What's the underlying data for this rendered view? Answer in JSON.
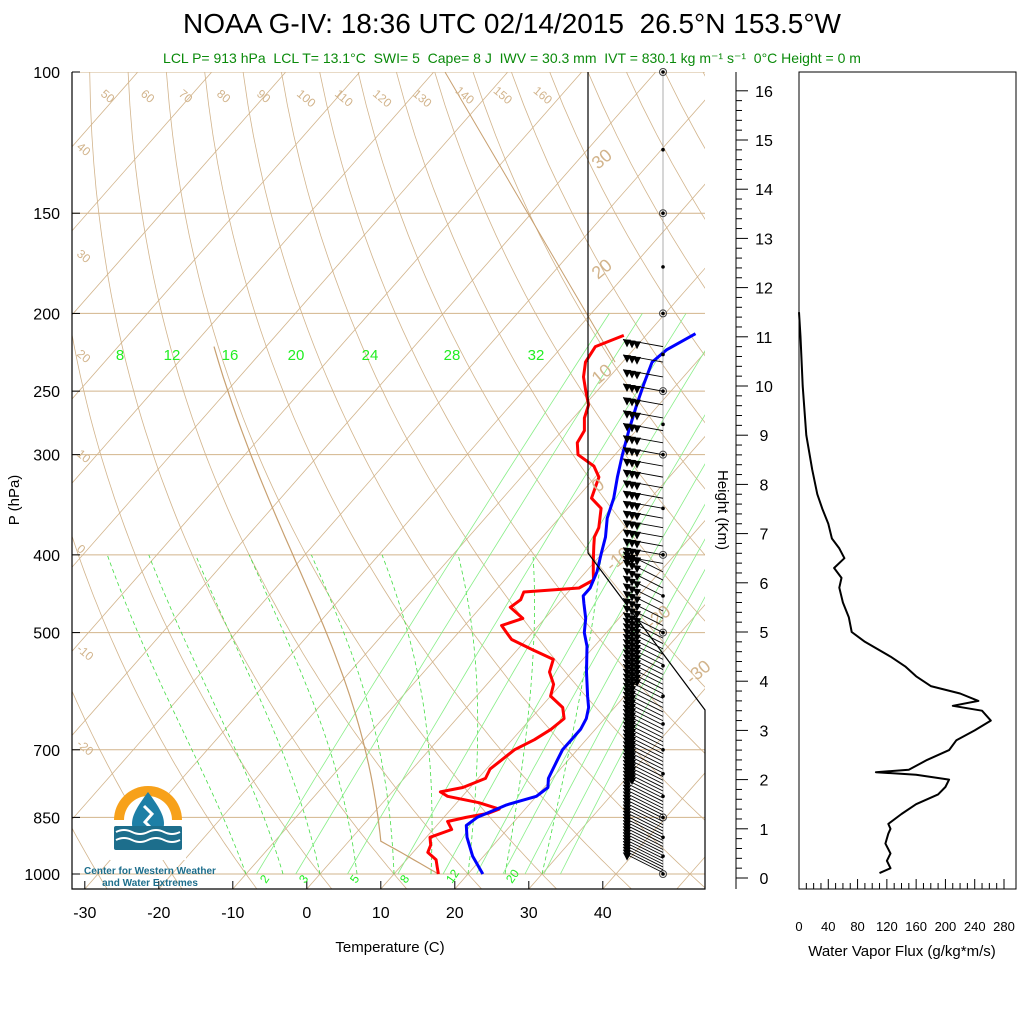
{
  "header": {
    "title": "NOAA G-IV: 18:36 UTC 02/14/2015  26.5°N 153.5°W",
    "subtitle": "LCL P= 913 hPa  LCL T= 13.1°C  SWI= 5  Cape= 8 J  IWV = 30.3 mm  IVT = 830.1 kg m⁻¹ s⁻¹  0°C Height = 0 m"
  },
  "logo": {
    "line1": "Center for Western Weather",
    "line2": "and Water Extremes",
    "colors": {
      "sun": "#f7a11a",
      "drop": "#1d7fa6",
      "wave": "#1d6e8c"
    }
  },
  "colors": {
    "temperature": "#ff0000",
    "dewpoint": "#0000ff",
    "background_lines": "#d2b48c",
    "mixing_ratio": "#00cc00"
  },
  "chart_data": [
    {
      "type": "line",
      "subtype": "skew-T log-P",
      "xlabel": "Temperature (C)",
      "ylabel": "P (hPa)",
      "x_ticks": [
        "-30",
        "-20",
        "-10",
        "0",
        "10",
        "20",
        "30",
        "40"
      ],
      "y_ticks": [
        "100",
        "150",
        "200",
        "250",
        "300",
        "400",
        "500",
        "700",
        "850",
        "1000"
      ],
      "y_scale": "log",
      "ylim": [
        1000,
        100
      ],
      "xlim": [
        -33,
        52
      ],
      "mixing_ratio_labels_upper": [
        "8",
        "12",
        "16",
        "20",
        "24",
        "28",
        "32"
      ],
      "mixing_ratio_labels_lower": [
        "2",
        "3",
        "5",
        "8",
        "12",
        "20"
      ],
      "theta_labels_top": [
        "50",
        "60",
        "70",
        "80",
        "90",
        "100",
        "110",
        "120",
        "130",
        "140",
        "150",
        "160"
      ],
      "theta_labels_left": [
        "40",
        "30",
        "20",
        "10",
        "0",
        "-10",
        "-20"
      ],
      "isotherm_labels_right": [
        "30",
        "20",
        "10",
        "0",
        "-10",
        "-20",
        "-30"
      ],
      "series": [
        {
          "name": "Temperature",
          "color": "#ff0000",
          "points": [
            [
              1000,
              16.0
            ],
            [
              980,
              15.0
            ],
            [
              960,
              14.0
            ],
            [
              940,
              12.0
            ],
            [
              920,
              11.5
            ],
            [
              900,
              10.5
            ],
            [
              880,
              12.5
            ],
            [
              860,
              11.0
            ],
            [
              850,
              13.0
            ],
            [
              840,
              15.5
            ],
            [
              830,
              16.5
            ],
            [
              815,
              13.0
            ],
            [
              800,
              8.0
            ],
            [
              790,
              6.5
            ],
            [
              780,
              9.0
            ],
            [
              760,
              11.0
            ],
            [
              740,
              10.5
            ],
            [
              720,
              11.0
            ],
            [
              700,
              11.5
            ],
            [
              680,
              13.0
            ],
            [
              660,
              14.0
            ],
            [
              640,
              14.5
            ],
            [
              620,
              13.0
            ],
            [
              600,
              10.0
            ],
            [
              580,
              9.0
            ],
            [
              560,
              7.0
            ],
            [
              540,
              6.0
            ],
            [
              525,
              2.0
            ],
            [
              510,
              -2.0
            ],
            [
              500,
              -3.5
            ],
            [
              490,
              -5.0
            ],
            [
              480,
              -3.0
            ],
            [
              465,
              -6.0
            ],
            [
              455,
              -5.5
            ],
            [
              445,
              -6.0
            ],
            [
              440,
              1.0
            ],
            [
              430,
              2.0
            ],
            [
              420,
              1.0
            ],
            [
              410,
              0.0
            ],
            [
              400,
              -1.0
            ],
            [
              390,
              -2.0
            ],
            [
              380,
              -3.0
            ],
            [
              370,
              -3.5
            ],
            [
              350,
              -5.5
            ],
            [
              340,
              -8.0
            ],
            [
              320,
              -9.5
            ],
            [
              310,
              -11.5
            ],
            [
              300,
              -15.0
            ],
            [
              290,
              -16.5
            ],
            [
              280,
              -17.0
            ],
            [
              270,
              -18.5
            ],
            [
              260,
              -19.5
            ],
            [
              250,
              -21.5
            ],
            [
              240,
              -23.5
            ],
            [
              230,
              -25.0
            ],
            [
              220,
              -25.5
            ],
            [
              213,
              -23.0
            ]
          ]
        },
        {
          "name": "Dewpoint",
          "color": "#0000ff",
          "points": [
            [
              1000,
              22.0
            ],
            [
              950,
              18.5
            ],
            [
              900,
              15.5
            ],
            [
              870,
              14.0
            ],
            [
              850,
              14.5
            ],
            [
              820,
              17.0
            ],
            [
              800,
              20.0
            ],
            [
              780,
              20.5
            ],
            [
              760,
              19.5
            ],
            [
              740,
              19.0
            ],
            [
              720,
              18.5
            ],
            [
              700,
              18.0
            ],
            [
              680,
              18.0
            ],
            [
              660,
              18.0
            ],
            [
              640,
              17.5
            ],
            [
              620,
              16.5
            ],
            [
              600,
              15.0
            ],
            [
              560,
              12.0
            ],
            [
              520,
              9.0
            ],
            [
              500,
              7.0
            ],
            [
              480,
              5.5
            ],
            [
              460,
              3.5
            ],
            [
              450,
              2.5
            ],
            [
              440,
              2.5
            ],
            [
              420,
              1.5
            ],
            [
              400,
              0.0
            ],
            [
              380,
              -1.5
            ],
            [
              360,
              -3.5
            ],
            [
              340,
              -5.0
            ],
            [
              320,
              -7.0
            ],
            [
              300,
              -9.0
            ],
            [
              280,
              -11.0
            ],
            [
              260,
              -13.0
            ],
            [
              245,
              -14.5
            ],
            [
              230,
              -16.0
            ],
            [
              222,
              -15.5
            ],
            [
              212,
              -13.5
            ]
          ]
        },
        {
          "name": "Water Vapor Flux",
          "xlabel": "Water Vapor Flux (g/kg*m/s)",
          "ylabel": "Height (Km)",
          "x_ticks": [
            "0",
            "40",
            "80",
            "120",
            "160",
            "200",
            "240",
            "280"
          ],
          "y_ticks": [
            "0",
            "1",
            "2",
            "3",
            "4",
            "5",
            "6",
            "7",
            "8",
            "9",
            "10",
            "11",
            "12",
            "13",
            "14",
            "15",
            "16"
          ],
          "xlim": [
            0,
            280
          ],
          "ylim": [
            0,
            16.5
          ],
          "points": [
            [
              0.1,
              110
            ],
            [
              0.2,
              125
            ],
            [
              0.35,
              120
            ],
            [
              0.5,
              125
            ],
            [
              0.7,
              118
            ],
            [
              0.9,
              122
            ],
            [
              1.0,
              125
            ],
            [
              1.1,
              122
            ],
            [
              1.3,
              140
            ],
            [
              1.5,
              160
            ],
            [
              1.7,
              190
            ],
            [
              1.85,
              200
            ],
            [
              2.0,
              205
            ],
            [
              2.1,
              160
            ],
            [
              2.15,
              105
            ],
            [
              2.2,
              150
            ],
            [
              2.4,
              175
            ],
            [
              2.6,
              205
            ],
            [
              2.8,
              215
            ],
            [
              3.0,
              240
            ],
            [
              3.2,
              262
            ],
            [
              3.4,
              250
            ],
            [
              3.5,
              210
            ],
            [
              3.6,
              245
            ],
            [
              3.75,
              220
            ],
            [
              3.9,
              180
            ],
            [
              4.1,
              160
            ],
            [
              4.3,
              145
            ],
            [
              4.5,
              125
            ],
            [
              4.8,
              90
            ],
            [
              5.0,
              72
            ],
            [
              5.3,
              68
            ],
            [
              5.6,
              60
            ],
            [
              5.9,
              55
            ],
            [
              6.1,
              58
            ],
            [
              6.3,
              48
            ],
            [
              6.5,
              62
            ],
            [
              6.7,
              55
            ],
            [
              6.9,
              45
            ],
            [
              7.2,
              40
            ],
            [
              7.5,
              32
            ],
            [
              7.8,
              25
            ],
            [
              8.3,
              18
            ],
            [
              9.0,
              10
            ],
            [
              10.0,
              5
            ],
            [
              11.0,
              2
            ],
            [
              11.5,
              0
            ]
          ]
        }
      ]
    }
  ]
}
